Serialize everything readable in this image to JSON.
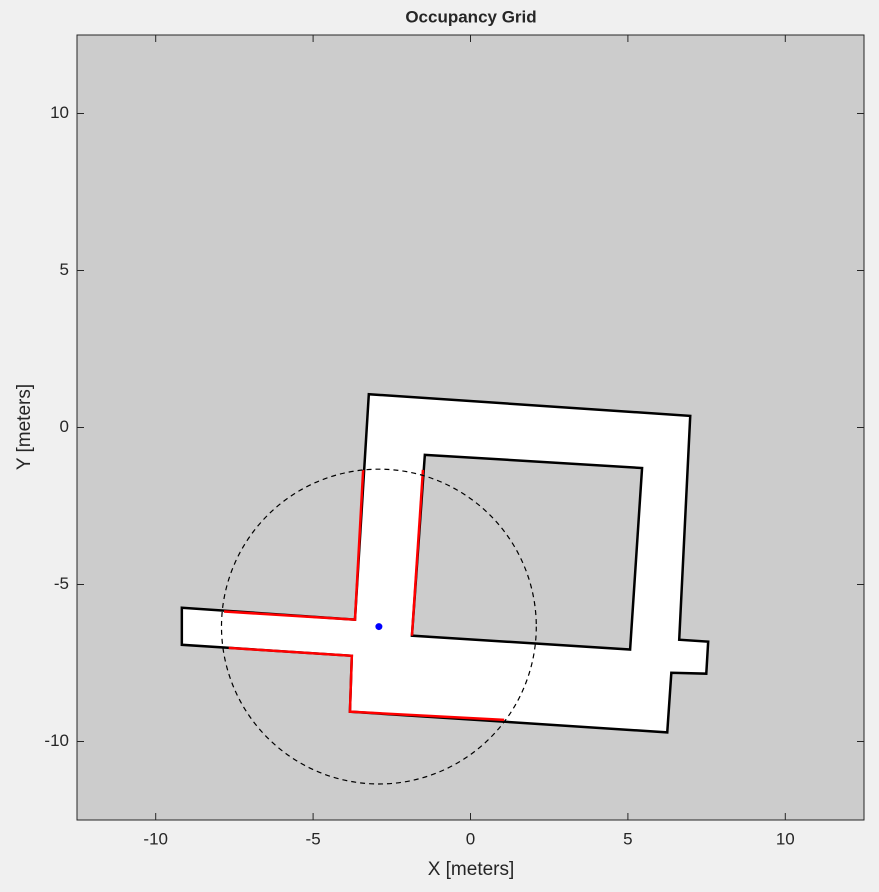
{
  "chart_data": {
    "type": "occupancy",
    "title": "Occupancy Grid",
    "xlabel": "X [meters]",
    "ylabel": "Y [meters]",
    "xlim": [
      -12.5,
      12.5
    ],
    "ylim": [
      -12.5,
      12.5
    ],
    "xticks": [
      -10,
      -5,
      0,
      5,
      10
    ],
    "yticks": [
      -10,
      -5,
      0,
      5,
      10
    ],
    "unknown_color": "#cccccc",
    "free_color": "#ffffff",
    "wall_color": "#000000",
    "free_space": {
      "outer": {
        "x": [
          -9.17,
          -3.67,
          -3.23,
          6.98,
          6.63,
          7.55,
          7.49,
          6.38,
          6.25,
          -3.83,
          -3.77,
          -9.17
        ],
        "y": [
          -5.74,
          -6.12,
          1.06,
          0.37,
          -6.76,
          -6.82,
          -7.84,
          -7.81,
          -9.71,
          -9.05,
          -7.27,
          -6.92
        ]
      },
      "hole": {
        "x": [
          -1.45,
          5.45,
          5.07,
          -1.86
        ],
        "y": [
          -0.87,
          -1.29,
          -7.07,
          -6.63
        ]
      }
    },
    "scans": [
      {
        "color": "#ff0000",
        "x": [
          -3.41,
          -3.67,
          -7.83
        ],
        "y": [
          -1.35,
          -6.12,
          -5.86
        ]
      },
      {
        "color": "#ff0000",
        "x": [
          -7.68,
          -3.77,
          -3.83,
          1.07
        ],
        "y": [
          -7.02,
          -7.27,
          -9.05,
          -9.31
        ]
      },
      {
        "color": "#ff0000",
        "x": [
          -1.51,
          -1.86
        ],
        "y": [
          -1.35,
          -6.63
        ]
      }
    ],
    "robot": {
      "x": -2.91,
      "y": -6.34,
      "sensor_range": 5,
      "color": "#0000ff"
    }
  }
}
